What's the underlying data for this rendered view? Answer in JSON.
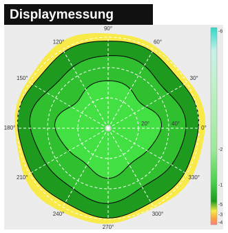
{
  "chart_data": {
    "type": "polar-contour",
    "title": "Displaymessung",
    "angle_ticks": [
      {
        "value": 0,
        "label": "0°"
      },
      {
        "value": 30,
        "label": "30°"
      },
      {
        "value": 60,
        "label": "60°"
      },
      {
        "value": 90,
        "label": "90°"
      },
      {
        "value": 120,
        "label": "120°"
      },
      {
        "value": 150,
        "label": "150°"
      },
      {
        "value": 180,
        "label": "180°"
      },
      {
        "value": 210,
        "label": "210°"
      },
      {
        "value": 240,
        "label": "240°"
      },
      {
        "value": 270,
        "label": "270°"
      },
      {
        "value": 300,
        "label": "300°"
      },
      {
        "value": 330,
        "label": "330°"
      }
    ],
    "rlim": [
      0,
      60
    ],
    "rticks": [
      {
        "value": 20,
        "label": "20°"
      },
      {
        "value": 40,
        "label": "40°"
      },
      {
        "value": 60,
        "label": "60°"
      }
    ],
    "colorbar_labels": [
      "-6",
      "-2",
      "-1",
      "-5",
      "-3",
      "-4"
    ],
    "colors": [
      "#f8ea48",
      "#1e9a1e",
      "#2fbf2f",
      "#42e042"
    ],
    "grid": true
  }
}
